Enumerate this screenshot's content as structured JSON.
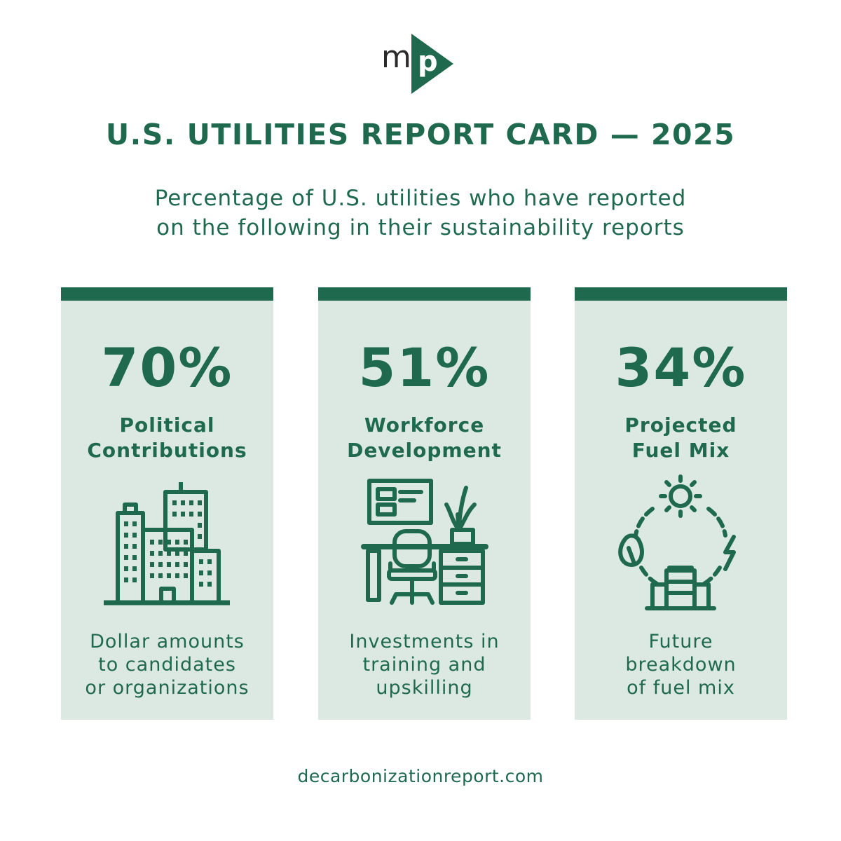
{
  "logo": {
    "letter_m": "m",
    "letter_p": "p",
    "icon": "play-triangle-icon"
  },
  "title": "U.S. UTILITIES REPORT CARD — 2025",
  "subtitle_line1": "Percentage of U.S. utilities who have reported",
  "subtitle_line2": "on the following in their sustainability reports",
  "colors": {
    "primary": "#1f6a4f",
    "card_bg": "#dce9e3",
    "text_dark": "#2a2a2a"
  },
  "cards": [
    {
      "percent": "70%",
      "value": 70,
      "label_line1": "Political",
      "label_line2": "Contributions",
      "icon": "city-buildings-icon",
      "desc_line1": "Dollar amounts",
      "desc_line2": "to candidates",
      "desc_line3": "or organizations"
    },
    {
      "percent": "51%",
      "value": 51,
      "label_line1": "Workforce",
      "label_line2": "Development",
      "icon": "office-desk-icon",
      "desc_line1": "Investments in",
      "desc_line2": "training and",
      "desc_line3": "upskilling"
    },
    {
      "percent": "34%",
      "value": 34,
      "label_line1": "Projected",
      "label_line2": "Fuel Mix",
      "icon": "energy-cycle-icon",
      "desc_line1": "Future",
      "desc_line2": "breakdown",
      "desc_line3": "of fuel mix"
    }
  ],
  "footer": "decarbonizationreport.com"
}
